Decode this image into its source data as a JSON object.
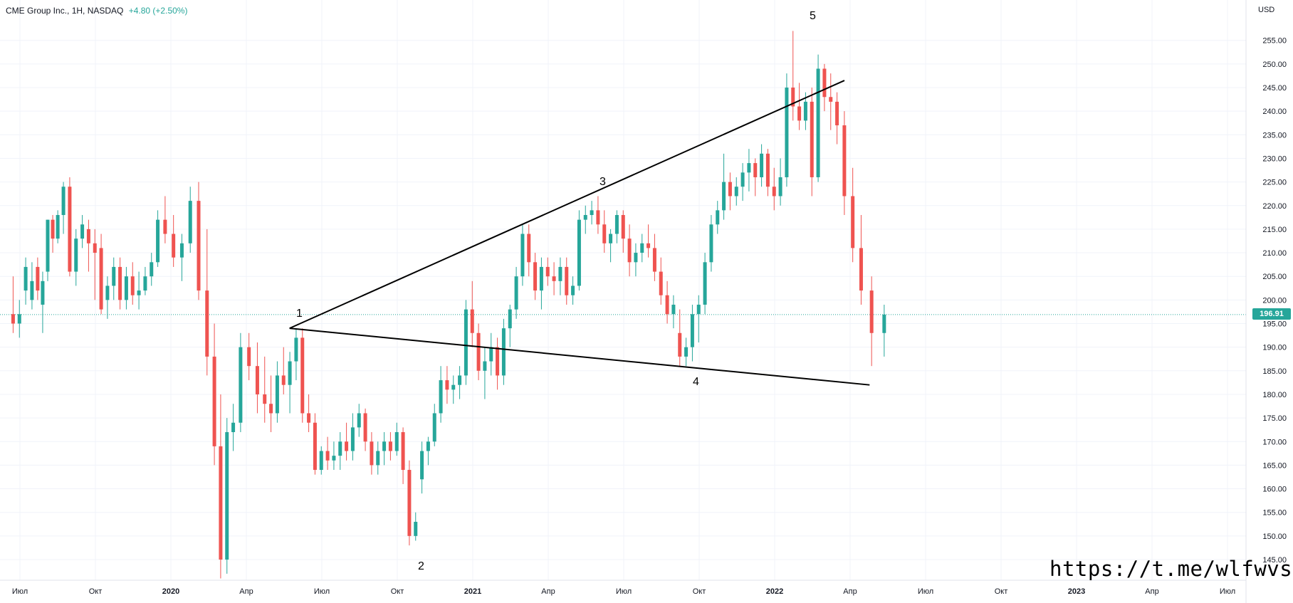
{
  "header": {
    "title": "CME Group Inc., 1H, NASDAQ",
    "change": "+4.80 (+2.50%)"
  },
  "currency": "USD",
  "last_price": "196.91",
  "watermark": "https://t.me/wlfwvs",
  "colors": {
    "up": "#26a69a",
    "down": "#ef5350",
    "grid": "#f0f3fa",
    "line": "#000000"
  },
  "chart_data": {
    "type": "candlestick",
    "title": "CME Group Inc., 1H, NASDAQ",
    "ylim": [
      141,
      260
    ],
    "y_ticks": [
      145,
      150,
      155,
      160,
      165,
      170,
      175,
      180,
      185,
      190,
      195,
      200,
      205,
      210,
      215,
      220,
      225,
      230,
      235,
      240,
      245,
      250,
      255
    ],
    "y_tick_labels": [
      "145.00",
      "150.00",
      "155.00",
      "160.00",
      "165.00",
      "170.00",
      "175.00",
      "180.00",
      "185.00",
      "190.00",
      "195.00",
      "200.00",
      "205.00",
      "210.00",
      "215.00",
      "220.00",
      "225.00",
      "230.00",
      "235.00",
      "240.00",
      "245.00",
      "250.00",
      "255.00"
    ],
    "x_ticks": [
      "Июл",
      "Окт",
      "2020",
      "Апр",
      "Июл",
      "Окт",
      "2021",
      "Апр",
      "Июл",
      "Окт",
      "2022",
      "Апр",
      "Июл",
      "Окт",
      "2023",
      "Апр",
      "Июл"
    ],
    "last_price": 196.91,
    "candles": [
      {
        "x": "2019-07",
        "o": 197,
        "h": 205,
        "l": 193,
        "c": 195
      },
      {
        "x": "2019-07",
        "o": 195,
        "h": 200,
        "l": 192,
        "c": 197
      },
      {
        "x": "2019-07",
        "o": 202,
        "h": 209,
        "l": 199,
        "c": 207
      },
      {
        "x": "2019-07",
        "o": 200,
        "h": 208,
        "l": 198,
        "c": 204
      },
      {
        "x": "2019-08",
        "o": 207,
        "h": 209,
        "l": 200,
        "c": 202
      },
      {
        "x": "2019-08",
        "o": 199,
        "h": 206,
        "l": 193,
        "c": 204
      },
      {
        "x": "2019-08",
        "o": 206,
        "h": 217,
        "l": 204,
        "c": 217
      },
      {
        "x": "2019-08",
        "o": 217,
        "h": 218,
        "l": 210,
        "c": 213
      },
      {
        "x": "2019-08",
        "o": 213,
        "h": 219,
        "l": 212,
        "c": 218
      },
      {
        "x": "2019-09",
        "o": 218,
        "h": 225,
        "l": 214,
        "c": 224
      },
      {
        "x": "2019-09",
        "o": 224,
        "h": 226,
        "l": 205,
        "c": 206
      },
      {
        "x": "2019-09",
        "o": 206,
        "h": 215,
        "l": 203,
        "c": 213
      },
      {
        "x": "2019-09",
        "o": 213,
        "h": 218,
        "l": 211,
        "c": 216
      },
      {
        "x": "2019-10",
        "o": 215,
        "h": 217,
        "l": 206,
        "c": 212
      },
      {
        "x": "2019-10",
        "o": 212,
        "h": 215,
        "l": 200,
        "c": 210
      },
      {
        "x": "2019-10",
        "o": 211,
        "h": 214,
        "l": 197,
        "c": 198
      },
      {
        "x": "2019-10",
        "o": 200,
        "h": 205,
        "l": 196,
        "c": 203
      },
      {
        "x": "2019-11",
        "o": 203,
        "h": 209,
        "l": 200,
        "c": 207
      },
      {
        "x": "2019-11",
        "o": 207,
        "h": 209,
        "l": 198,
        "c": 200
      },
      {
        "x": "2019-11",
        "o": 200,
        "h": 207,
        "l": 198,
        "c": 205
      },
      {
        "x": "2019-11",
        "o": 205,
        "h": 208,
        "l": 199,
        "c": 201
      },
      {
        "x": "2019-12",
        "o": 201,
        "h": 206,
        "l": 198,
        "c": 202
      },
      {
        "x": "2019-12",
        "o": 202,
        "h": 207,
        "l": 201,
        "c": 205
      },
      {
        "x": "2019-12",
        "o": 205,
        "h": 210,
        "l": 203,
        "c": 208
      },
      {
        "x": "2019-12",
        "o": 208,
        "h": 219,
        "l": 207,
        "c": 217
      },
      {
        "x": "2020-01",
        "o": 217,
        "h": 222,
        "l": 212,
        "c": 214
      },
      {
        "x": "2020-01",
        "o": 214,
        "h": 218,
        "l": 207,
        "c": 209
      },
      {
        "x": "2020-01",
        "o": 209,
        "h": 214,
        "l": 204,
        "c": 212
      },
      {
        "x": "2020-02",
        "o": 212,
        "h": 224,
        "l": 210,
        "c": 221
      },
      {
        "x": "2020-02",
        "o": 221,
        "h": 225,
        "l": 200,
        "c": 202
      },
      {
        "x": "2020-02",
        "o": 202,
        "h": 215,
        "l": 184,
        "c": 188
      },
      {
        "x": "2020-03",
        "o": 188,
        "h": 195,
        "l": 165,
        "c": 169
      },
      {
        "x": "2020-03",
        "o": 169,
        "h": 180,
        "l": 141,
        "c": 145
      },
      {
        "x": "2020-03",
        "o": 145,
        "h": 175,
        "l": 142,
        "c": 172
      },
      {
        "x": "2020-03",
        "o": 172,
        "h": 178,
        "l": 168,
        "c": 174
      },
      {
        "x": "2020-04",
        "o": 174,
        "h": 193,
        "l": 172,
        "c": 190
      },
      {
        "x": "2020-04",
        "o": 190,
        "h": 193,
        "l": 183,
        "c": 186
      },
      {
        "x": "2020-04",
        "o": 186,
        "h": 191,
        "l": 176,
        "c": 180
      },
      {
        "x": "2020-05",
        "o": 180,
        "h": 188,
        "l": 174,
        "c": 178
      },
      {
        "x": "2020-05",
        "o": 178,
        "h": 184,
        "l": 172,
        "c": 176
      },
      {
        "x": "2020-05",
        "o": 176,
        "h": 187,
        "l": 174,
        "c": 184
      },
      {
        "x": "2020-05",
        "o": 184,
        "h": 190,
        "l": 180,
        "c": 182
      },
      {
        "x": "2020-06",
        "o": 182,
        "h": 189,
        "l": 176,
        "c": 187
      },
      {
        "x": "2020-06",
        "o": 187,
        "h": 194,
        "l": 183,
        "c": 192
      },
      {
        "x": "2020-06",
        "o": 192,
        "h": 194,
        "l": 174,
        "c": 176
      },
      {
        "x": "2020-06",
        "o": 176,
        "h": 180,
        "l": 172,
        "c": 174
      },
      {
        "x": "2020-07",
        "o": 174,
        "h": 176,
        "l": 163,
        "c": 164
      },
      {
        "x": "2020-07",
        "o": 164,
        "h": 169,
        "l": 163,
        "c": 168
      },
      {
        "x": "2020-07",
        "o": 168,
        "h": 171,
        "l": 164,
        "c": 166
      },
      {
        "x": "2020-07",
        "o": 166,
        "h": 170,
        "l": 164,
        "c": 167
      },
      {
        "x": "2020-08",
        "o": 167,
        "h": 172,
        "l": 164,
        "c": 170
      },
      {
        "x": "2020-08",
        "o": 170,
        "h": 174,
        "l": 166,
        "c": 168
      },
      {
        "x": "2020-08",
        "o": 168,
        "h": 176,
        "l": 166,
        "c": 173
      },
      {
        "x": "2020-08",
        "o": 173,
        "h": 178,
        "l": 171,
        "c": 176
      },
      {
        "x": "2020-09",
        "o": 176,
        "h": 177,
        "l": 168,
        "c": 170
      },
      {
        "x": "2020-09",
        "o": 170,
        "h": 172,
        "l": 163,
        "c": 165
      },
      {
        "x": "2020-09",
        "o": 165,
        "h": 170,
        "l": 163,
        "c": 168
      },
      {
        "x": "2020-09",
        "o": 168,
        "h": 172,
        "l": 165,
        "c": 170
      },
      {
        "x": "2020-10",
        "o": 170,
        "h": 172,
        "l": 166,
        "c": 168
      },
      {
        "x": "2020-10",
        "o": 168,
        "h": 174,
        "l": 167,
        "c": 172
      },
      {
        "x": "2020-10",
        "o": 172,
        "h": 173,
        "l": 161,
        "c": 164
      },
      {
        "x": "2020-10",
        "o": 164,
        "h": 166,
        "l": 148,
        "c": 150
      },
      {
        "x": "2020-11",
        "o": 150,
        "h": 155,
        "l": 149,
        "c": 153
      },
      {
        "x": "2020-11",
        "o": 162,
        "h": 170,
        "l": 159,
        "c": 168
      },
      {
        "x": "2020-11",
        "o": 168,
        "h": 171,
        "l": 165,
        "c": 170
      },
      {
        "x": "2020-11",
        "o": 170,
        "h": 178,
        "l": 169,
        "c": 176
      },
      {
        "x": "2020-12",
        "o": 176,
        "h": 186,
        "l": 174,
        "c": 183
      },
      {
        "x": "2020-12",
        "o": 183,
        "h": 186,
        "l": 178,
        "c": 181
      },
      {
        "x": "2020-12",
        "o": 181,
        "h": 184,
        "l": 178,
        "c": 182
      },
      {
        "x": "2020-12",
        "o": 182,
        "h": 186,
        "l": 179,
        "c": 184
      },
      {
        "x": "2021-01",
        "o": 184,
        "h": 200,
        "l": 182,
        "c": 198
      },
      {
        "x": "2021-01",
        "o": 198,
        "h": 204,
        "l": 190,
        "c": 193
      },
      {
        "x": "2021-01",
        "o": 193,
        "h": 195,
        "l": 183,
        "c": 185
      },
      {
        "x": "2021-01",
        "o": 185,
        "h": 190,
        "l": 179,
        "c": 187
      },
      {
        "x": "2021-02",
        "o": 187,
        "h": 193,
        "l": 184,
        "c": 190
      },
      {
        "x": "2021-02",
        "o": 190,
        "h": 192,
        "l": 181,
        "c": 184
      },
      {
        "x": "2021-02",
        "o": 184,
        "h": 196,
        "l": 182,
        "c": 194
      },
      {
        "x": "2021-02",
        "o": 194,
        "h": 199,
        "l": 190,
        "c": 198
      },
      {
        "x": "2021-03",
        "o": 198,
        "h": 207,
        "l": 196,
        "c": 205
      },
      {
        "x": "2021-03",
        "o": 205,
        "h": 216,
        "l": 203,
        "c": 214
      },
      {
        "x": "2021-03",
        "o": 214,
        "h": 216,
        "l": 205,
        "c": 208
      },
      {
        "x": "2021-03",
        "o": 208,
        "h": 210,
        "l": 200,
        "c": 202
      },
      {
        "x": "2021-04",
        "o": 202,
        "h": 209,
        "l": 198,
        "c": 207
      },
      {
        "x": "2021-04",
        "o": 207,
        "h": 209,
        "l": 203,
        "c": 205
      },
      {
        "x": "2021-04",
        "o": 205,
        "h": 208,
        "l": 201,
        "c": 204
      },
      {
        "x": "2021-04",
        "o": 204,
        "h": 209,
        "l": 201,
        "c": 207
      },
      {
        "x": "2021-05",
        "o": 207,
        "h": 209,
        "l": 199,
        "c": 201
      },
      {
        "x": "2021-05",
        "o": 201,
        "h": 205,
        "l": 199,
        "c": 203
      },
      {
        "x": "2021-05",
        "o": 203,
        "h": 219,
        "l": 202,
        "c": 217
      },
      {
        "x": "2021-05",
        "o": 217,
        "h": 220,
        "l": 214,
        "c": 218
      },
      {
        "x": "2021-06",
        "o": 218,
        "h": 221,
        "l": 216,
        "c": 219
      },
      {
        "x": "2021-06",
        "o": 219,
        "h": 222,
        "l": 214,
        "c": 216
      },
      {
        "x": "2021-06",
        "o": 216,
        "h": 219,
        "l": 210,
        "c": 212
      },
      {
        "x": "2021-06",
        "o": 212,
        "h": 215,
        "l": 208,
        "c": 214
      },
      {
        "x": "2021-07",
        "o": 214,
        "h": 219,
        "l": 212,
        "c": 218
      },
      {
        "x": "2021-07",
        "o": 218,
        "h": 219,
        "l": 210,
        "c": 213
      },
      {
        "x": "2021-07",
        "o": 213,
        "h": 216,
        "l": 205,
        "c": 208
      },
      {
        "x": "2021-07",
        "o": 208,
        "h": 212,
        "l": 205,
        "c": 210
      },
      {
        "x": "2021-08",
        "o": 210,
        "h": 214,
        "l": 208,
        "c": 212
      },
      {
        "x": "2021-08",
        "o": 212,
        "h": 216,
        "l": 209,
        "c": 211
      },
      {
        "x": "2021-08",
        "o": 211,
        "h": 214,
        "l": 204,
        "c": 206
      },
      {
        "x": "2021-08",
        "o": 206,
        "h": 209,
        "l": 199,
        "c": 201
      },
      {
        "x": "2021-09",
        "o": 201,
        "h": 204,
        "l": 195,
        "c": 197
      },
      {
        "x": "2021-09",
        "o": 197,
        "h": 201,
        "l": 194,
        "c": 199
      },
      {
        "x": "2021-09",
        "o": 193,
        "h": 198,
        "l": 186,
        "c": 188
      },
      {
        "x": "2021-09",
        "o": 188,
        "h": 192,
        "l": 186,
        "c": 190
      },
      {
        "x": "2021-10",
        "o": 190,
        "h": 199,
        "l": 187,
        "c": 197
      },
      {
        "x": "2021-10",
        "o": 197,
        "h": 201,
        "l": 191,
        "c": 199
      },
      {
        "x": "2021-10",
        "o": 199,
        "h": 210,
        "l": 197,
        "c": 208
      },
      {
        "x": "2021-10",
        "o": 208,
        "h": 218,
        "l": 206,
        "c": 216
      },
      {
        "x": "2021-11",
        "o": 216,
        "h": 221,
        "l": 214,
        "c": 219
      },
      {
        "x": "2021-11",
        "o": 219,
        "h": 231,
        "l": 217,
        "c": 225
      },
      {
        "x": "2021-11",
        "o": 225,
        "h": 227,
        "l": 219,
        "c": 222
      },
      {
        "x": "2021-11",
        "o": 222,
        "h": 226,
        "l": 220,
        "c": 224
      },
      {
        "x": "2021-12",
        "o": 224,
        "h": 229,
        "l": 221,
        "c": 227
      },
      {
        "x": "2021-12",
        "o": 227,
        "h": 232,
        "l": 223,
        "c": 229
      },
      {
        "x": "2021-12",
        "o": 229,
        "h": 230,
        "l": 222,
        "c": 226
      },
      {
        "x": "2021-12",
        "o": 226,
        "h": 233,
        "l": 224,
        "c": 231
      },
      {
        "x": "2022-01",
        "o": 231,
        "h": 232,
        "l": 222,
        "c": 224
      },
      {
        "x": "2022-01",
        "o": 224,
        "h": 228,
        "l": 219,
        "c": 222
      },
      {
        "x": "2022-01",
        "o": 222,
        "h": 230,
        "l": 220,
        "c": 226
      },
      {
        "x": "2022-01",
        "o": 226,
        "h": 248,
        "l": 224,
        "c": 245
      },
      {
        "x": "2022-02",
        "o": 245,
        "h": 257,
        "l": 238,
        "c": 241
      },
      {
        "x": "2022-02",
        "o": 241,
        "h": 246,
        "l": 236,
        "c": 238
      },
      {
        "x": "2022-02",
        "o": 238,
        "h": 244,
        "l": 236,
        "c": 242
      },
      {
        "x": "2022-02",
        "o": 242,
        "h": 245,
        "l": 222,
        "c": 226
      },
      {
        "x": "2022-03",
        "o": 226,
        "h": 252,
        "l": 225,
        "c": 249
      },
      {
        "x": "2022-03",
        "o": 249,
        "h": 250,
        "l": 240,
        "c": 243
      },
      {
        "x": "2022-03",
        "o": 243,
        "h": 248,
        "l": 236,
        "c": 242
      },
      {
        "x": "2022-03",
        "o": 242,
        "h": 244,
        "l": 233,
        "c": 237
      },
      {
        "x": "2022-04",
        "o": 237,
        "h": 240,
        "l": 218,
        "c": 222
      },
      {
        "x": "2022-04",
        "o": 222,
        "h": 228,
        "l": 208,
        "c": 211
      },
      {
        "x": "2022-04",
        "o": 211,
        "h": 218,
        "l": 199,
        "c": 202
      },
      {
        "x": "2022-05",
        "o": 202,
        "h": 205,
        "l": 186,
        "c": 193
      },
      {
        "x": "2022-05",
        "o": 193,
        "h": 199,
        "l": 188,
        "c": 196.91
      }
    ],
    "trendlines": [
      {
        "name": "upper",
        "from": {
          "x": "2020-06",
          "y": 194
        },
        "to": {
          "x": "2022-04",
          "y": 246.5
        }
      },
      {
        "name": "lower",
        "from": {
          "x": "2020-06",
          "y": 194
        },
        "to": {
          "x": "2022-05",
          "y": 182
        }
      }
    ],
    "annotations": [
      "1",
      "2",
      "3",
      "4",
      "5"
    ]
  }
}
